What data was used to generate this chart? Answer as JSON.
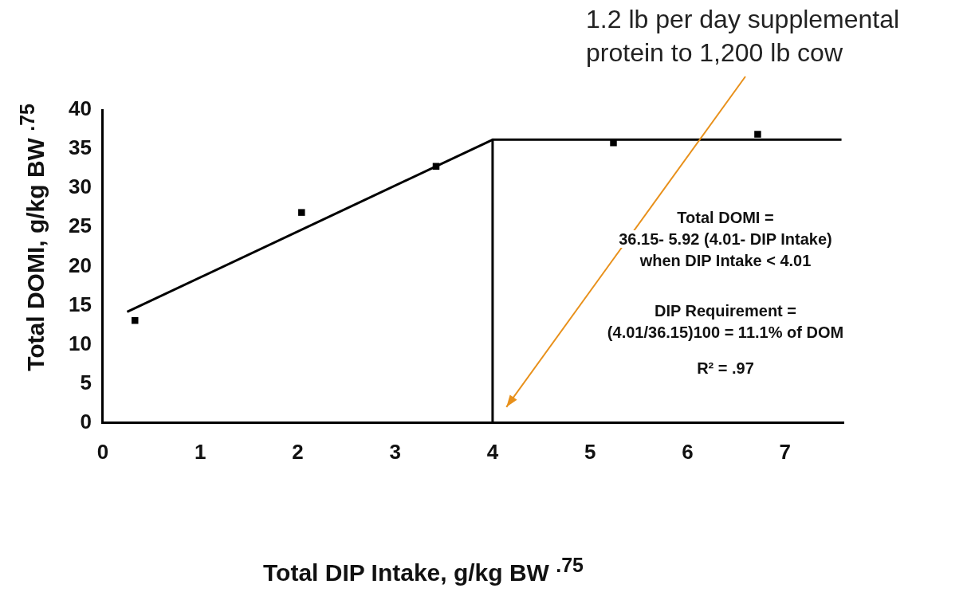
{
  "chart_data": {
    "type": "scatter",
    "xlabel": "Total DIP Intake, g/kg BW $^{.75}$",
    "ylabel": "Total DOMI, g/kg BW $^{.75}$",
    "xlim": [
      0,
      7.6
    ],
    "xticks": [
      0,
      1,
      2,
      3,
      4,
      5,
      6,
      7
    ],
    "ylim": [
      0,
      40
    ],
    "yticks": [
      0,
      5,
      10,
      15,
      20,
      25,
      30,
      35,
      40
    ],
    "grid": false,
    "legend": false,
    "marker": "square",
    "series": [
      {
        "type": "scatter",
        "color": "#000000",
        "x": [
          0.33,
          2.04,
          3.42,
          5.24,
          6.72
        ],
        "values": [
          13.1,
          26.9,
          32.8,
          35.8,
          36.9
        ]
      },
      {
        "type": "line",
        "color": "#000000",
        "marker": "none",
        "x": [
          0.25,
          4.0,
          7.58
        ],
        "values": [
          14.2,
          36.2,
          36.2
        ]
      },
      {
        "type": "line",
        "color": "#000000",
        "marker": "none",
        "x": [
          4.0,
          4.0
        ],
        "values": [
          36.2,
          0
        ]
      }
    ],
    "annotations": [
      "Total DOMI =",
      "36.15- 5.92 (4.01- DIP Intake)",
      "when DIP Intake < 4.01",
      "DIP Requirement =",
      "(4.01/36.15)100 = 11.1% of DOM",
      "R² =  .97",
      "1.2 lb per day supplemental\nprotein to 1,200 lb cow"
    ]
  }
}
